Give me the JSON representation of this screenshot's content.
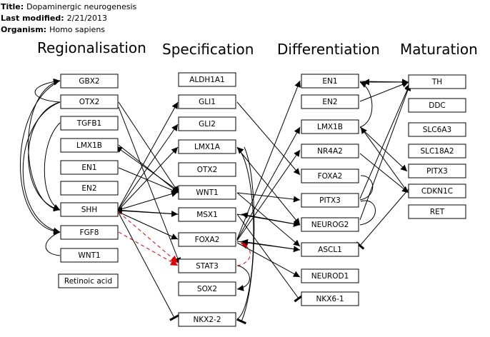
{
  "meta": {
    "title_label": "Title:",
    "title_value": "Dopaminergic neurogenesis",
    "modified_label": "Last modified:",
    "modified_value": "2/21/2013",
    "organism_label": "Organism:",
    "organism_value": "Homo sapiens"
  },
  "headers": {
    "regionalisation": "Regionalisation",
    "specification": "Specification",
    "differentiation": "Differentiation",
    "maturation": "Maturation"
  },
  "nodes": {
    "gbx2": "GBX2",
    "otx2_r": "OTX2",
    "tgfb1": "TGFB1",
    "lmx1b_r": "LMX1B",
    "en1_r": "EN1",
    "en2_r": "EN2",
    "shh": "SHH",
    "fgf8": "FGF8",
    "wnt1_r": "WNT1",
    "retinoic": "Retinoic acid",
    "aldh1a1": "ALDH1A1",
    "gli1": "GLI1",
    "gli2": "GLI2",
    "lmx1a": "LMX1A",
    "otx2_s": "OTX2",
    "wnt1_s": "WNT1",
    "msx1": "MSX1",
    "foxa2_s": "FOXA2",
    "stat3": "STAT3",
    "sox2": "SOX2",
    "nkx22": "NKX2-2",
    "en1_d": "EN1",
    "en2_d": "EN2",
    "lmx1b_d": "LMX1B",
    "nr4a2": "NR4A2",
    "foxa2_d": "FOXA2",
    "pitx3_d": "PITX3",
    "neurog2": "NEUROG2",
    "ascl1": "ASCL1",
    "neurod1": "NEUROD1",
    "nkx61": "NKX6-1",
    "th": "TH",
    "ddc": "DDC",
    "slc6a3": "SLC6A3",
    "slc18a2": "SLC18A2",
    "pitx3_m": "PITX3",
    "cdkn1c": "CDKN1C",
    "ret": "RET"
  },
  "colors": {
    "inhibition_red": "#e00000"
  }
}
